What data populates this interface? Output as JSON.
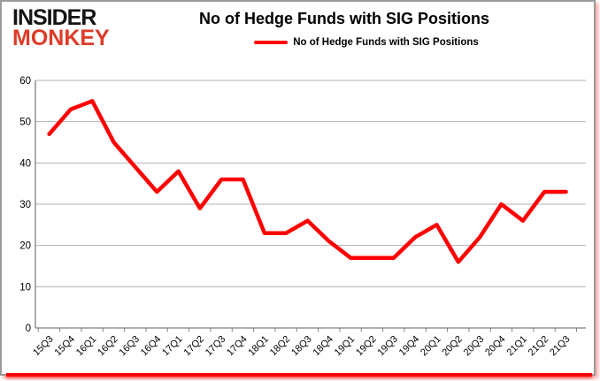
{
  "logo": {
    "line1": "INSIDER",
    "line2": "MONKEY",
    "color_line1": "#141414",
    "color_line2": "#dd3b28"
  },
  "header": {
    "title": "No of Hedge Funds with SIG Positions"
  },
  "legend": {
    "label": "No of Hedge Funds with SIG Positions",
    "line_color": "#ff0000"
  },
  "chart_data": {
    "type": "line",
    "title": "No of Hedge Funds with SIG Positions",
    "categories": [
      "15Q3",
      "15Q4",
      "16Q1",
      "16Q2",
      "16Q3",
      "16Q4",
      "17Q1",
      "17Q2",
      "17Q3",
      "17Q4",
      "18Q1",
      "18Q2",
      "18Q3",
      "18Q4",
      "19Q1",
      "19Q2",
      "19Q3",
      "19Q4",
      "20Q1",
      "20Q2",
      "20Q3",
      "20Q4",
      "21Q1",
      "21Q2",
      "21Q3"
    ],
    "series": [
      {
        "name": "No of Hedge Funds with SIG Positions",
        "values": [
          47,
          53,
          55,
          45,
          39,
          33,
          38,
          29,
          36,
          36,
          23,
          23,
          26,
          21,
          17,
          17,
          17,
          22,
          25,
          16,
          22,
          30,
          26,
          33,
          33
        ]
      }
    ],
    "ylim": [
      0,
      60
    ],
    "yticks": [
      0,
      10,
      20,
      30,
      40,
      50,
      60
    ],
    "xlabel": "",
    "ylabel": "",
    "grid": "horizontal",
    "legend_position": "top-center",
    "line_color": "#ff0000",
    "grid_color": "#b3b3b3",
    "axis_color": "#808080",
    "tick_label_color": "#000000"
  }
}
